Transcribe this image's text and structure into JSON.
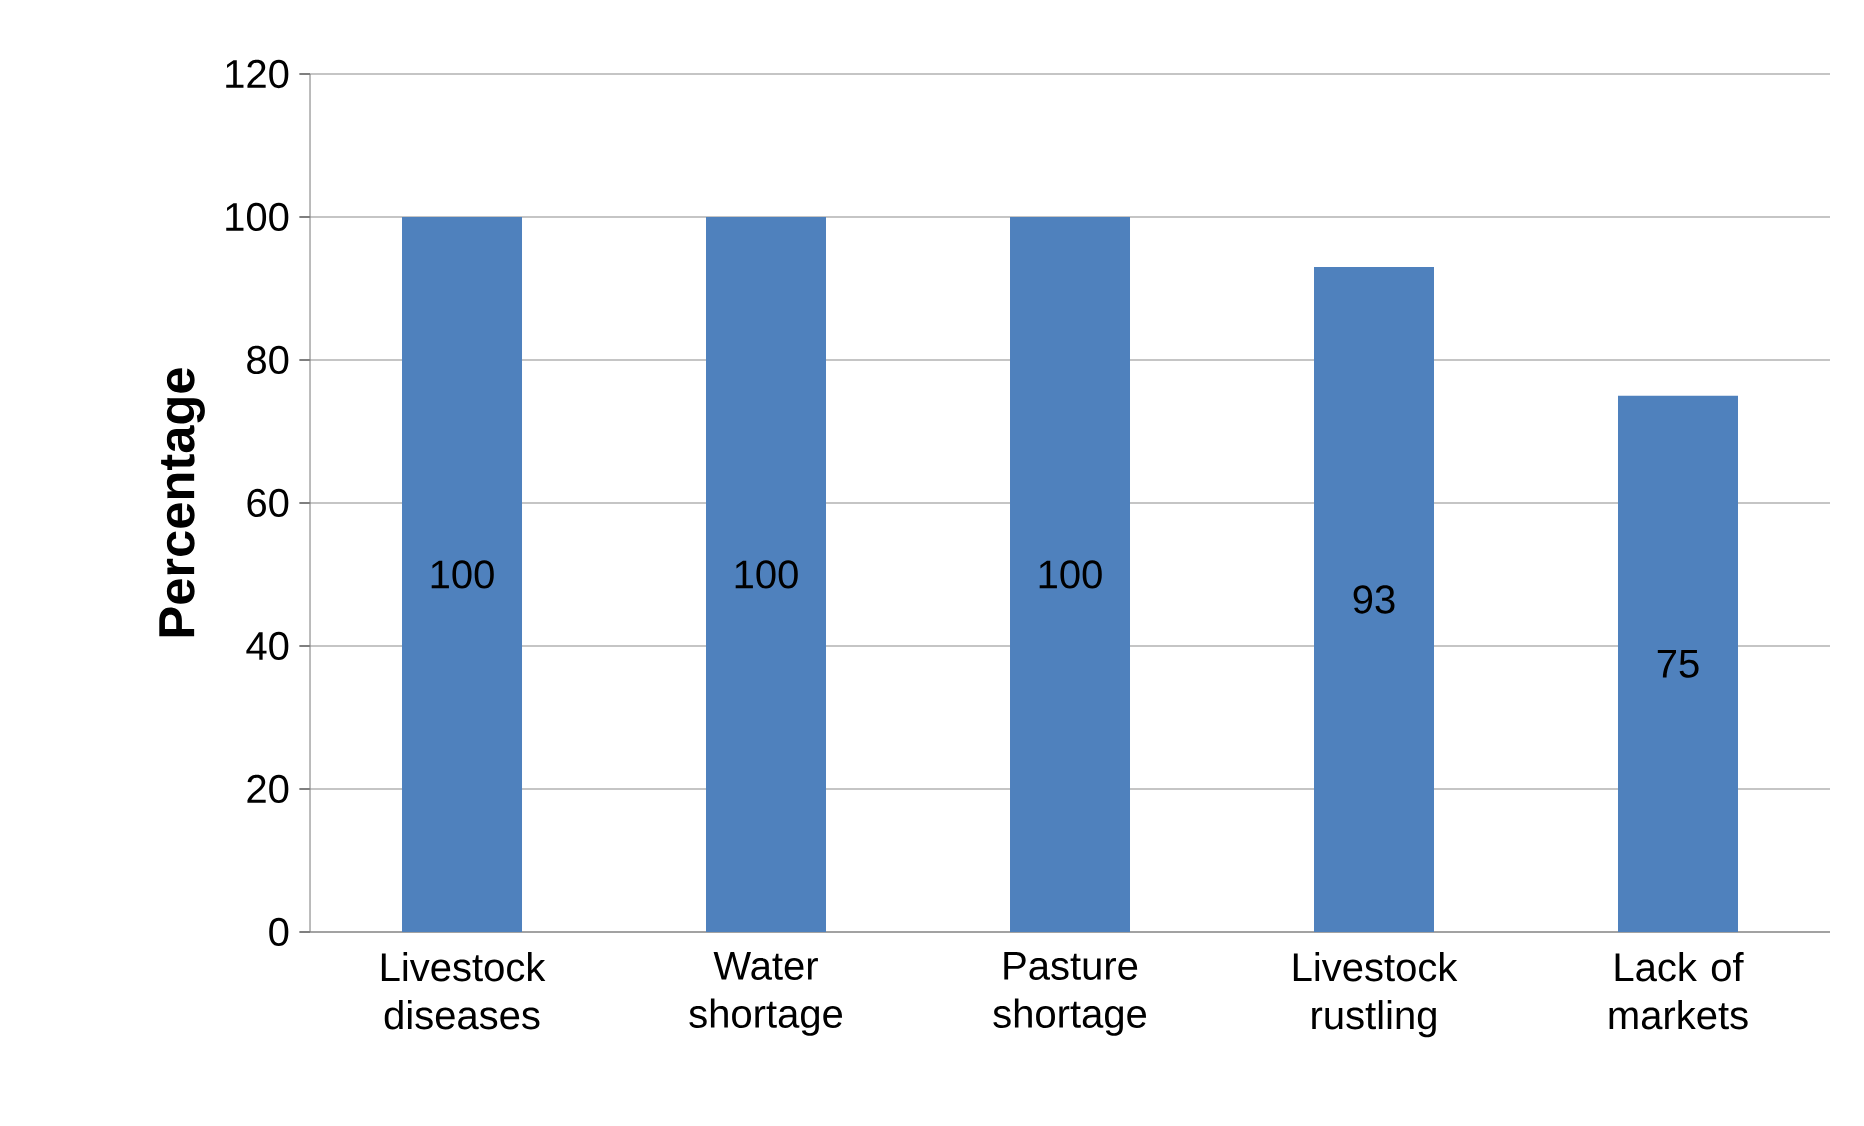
{
  "chart_data": {
    "type": "bar",
    "ylabel": "Percentage",
    "categories": [
      "Livestock diseases",
      "Water shortage",
      "Pasture shortage",
      "Livestock rustling",
      "Lack of markets"
    ],
    "values": [
      100,
      100,
      100,
      93,
      75
    ],
    "color": "#4f81bd",
    "ylim": [
      0,
      120
    ],
    "yticks": [
      0,
      20,
      40,
      60,
      80,
      100,
      120
    ],
    "grid": "y",
    "data_labels": true
  }
}
